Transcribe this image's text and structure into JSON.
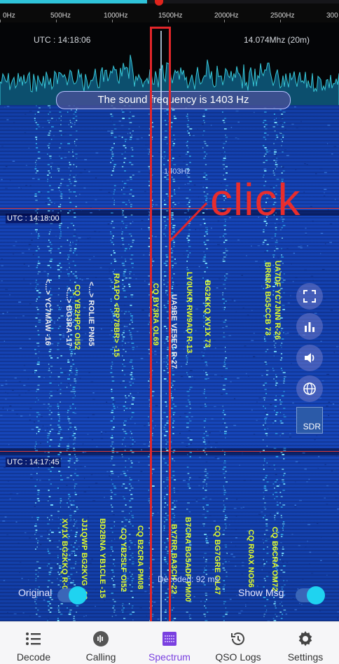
{
  "ruler": {
    "ticks": [
      "0Hz",
      "500Hz",
      "1000Hz",
      "1500Hz",
      "2000Hz",
      "2500Hz",
      "300"
    ]
  },
  "spectrum": {
    "utc": "UTC : 14:18:06",
    "dial_frequency": "14.074Mhz (20m)"
  },
  "sound_frequency_text": "The sound frequency is 1403 Hz",
  "cursor_hz_label": "1403Hz",
  "annotation": "click",
  "waterfall": {
    "periods": [
      {
        "utc": "UTC : 14:18:00"
      },
      {
        "utc": "UTC : 14:17:45"
      }
    ],
    "messages_top": [
      {
        "text": "<...> YC7MAW -16",
        "color": "white"
      },
      {
        "text": "<...> ROLIE PN65",
        "color": "white"
      },
      {
        "text": "<...> BG3RA -17",
        "color": "white"
      },
      {
        "text": "CQ YB2HPC OI52",
        "color": "yellow"
      },
      {
        "text": "RA1PO <RP78BR> -15",
        "color": "yellow"
      },
      {
        "text": "CQ BY3RA OL69",
        "color": "yellow"
      },
      {
        "text": "UA9BE VE5EC R-27",
        "color": "yellow"
      },
      {
        "text": "LY0UKR RW9AD R-13",
        "color": "yellow"
      },
      {
        "text": "BG2KKQ XV1X 73",
        "color": "yellow"
      },
      {
        "text": "UA7DF YC7JNN R-26",
        "color": "yellow"
      },
      {
        "text": "BR6RA BG5CCB 73",
        "color": "yellow"
      }
    ],
    "messages_bottom": [
      {
        "text": "XV1X BG2KKQ R-08",
        "color": "yellow"
      },
      {
        "text": "JJ1QWP BG2KVG -03",
        "color": "yellow"
      },
      {
        "text": "BD2BNA YB1CLE -15",
        "color": "yellow"
      },
      {
        "text": "CQ YB2SLF OI52",
        "color": "yellow"
      },
      {
        "text": "CQ B2CRA PM08",
        "color": "yellow"
      },
      {
        "text": "BY7RR BA3CH -22",
        "color": "yellow"
      },
      {
        "text": "B7CRA BG5ADP PM00",
        "color": "yellow"
      },
      {
        "text": "CQ BG7GRE OL47",
        "color": "yellow"
      },
      {
        "text": "CQ R0AX NO56",
        "color": "yellow"
      },
      {
        "text": "CQ B6CRA OM72",
        "color": "yellow"
      }
    ],
    "decoded_text": "Decoded: 92 ms"
  },
  "toggles": {
    "original_label": "Original",
    "original_on": true,
    "show_msg_label": "Show Msg",
    "show_msg_on": true
  },
  "side_buttons": [
    "fullscreen-icon",
    "bar-chart-icon",
    "speaker-icon",
    "globe-icon",
    "sdr-icon"
  ],
  "sdr_label": "SDR",
  "nav": [
    {
      "label": "Decode",
      "icon": "list-icon",
      "active": false
    },
    {
      "label": "Calling",
      "icon": "calling-icon",
      "active": false
    },
    {
      "label": "Spectrum",
      "icon": "spectrum-icon",
      "active": true
    },
    {
      "label": "QSO Logs",
      "icon": "history-icon",
      "active": false
    },
    {
      "label": "Settings",
      "icon": "gear-icon",
      "active": false
    }
  ],
  "colors": {
    "accent": "#7a40e0",
    "annotation_red": "#e2262a",
    "message_yellow": "#e4ff2a",
    "toggle_knob": "#1fd3f0"
  }
}
